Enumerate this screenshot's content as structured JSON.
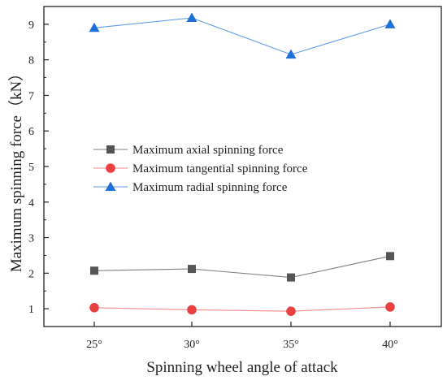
{
  "chart_data": {
    "type": "line",
    "xlabel": "Spinning wheel angle of attack",
    "ylabel": "Maximum spinning force（kN）",
    "categories": [
      "25°",
      "30°",
      "35°",
      "40°"
    ],
    "ylim": [
      0.5,
      9.5
    ],
    "yticks": [
      1,
      2,
      3,
      4,
      5,
      6,
      7,
      8,
      9
    ],
    "grid": false,
    "legend_position": "center-left",
    "series": [
      {
        "name": "Maximum axial spinning force",
        "values": [
          2.07,
          2.12,
          1.88,
          2.48
        ],
        "color": "#555555",
        "line_color": "#808080",
        "marker": "square"
      },
      {
        "name": "Maximum tangential spinning force",
        "values": [
          1.03,
          0.97,
          0.93,
          1.05
        ],
        "color": "#e8413f",
        "line_color": "#f28a89",
        "marker": "circle"
      },
      {
        "name": "Maximum radial spinning force",
        "values": [
          8.9,
          9.18,
          8.15,
          9.0
        ],
        "color": "#1f6fd9",
        "line_color": "#5b9ae8",
        "marker": "triangle"
      }
    ]
  }
}
